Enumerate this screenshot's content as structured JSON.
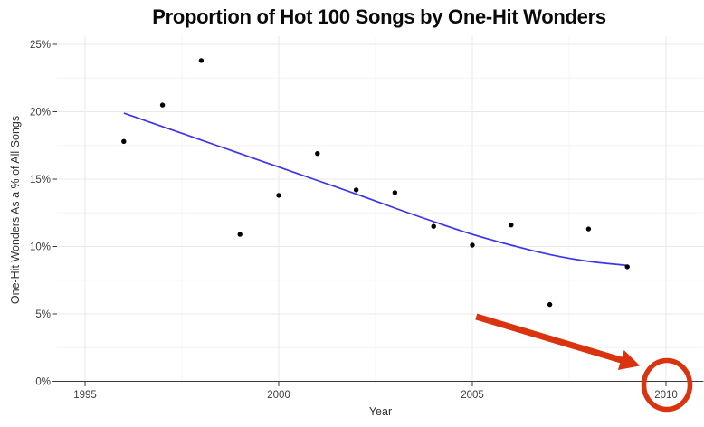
{
  "chart_data": {
    "type": "scatter",
    "title": "Proportion of Hot 100 Songs by One-Hit Wonders",
    "xlabel": "Year",
    "ylabel": "One-Hit Wonders As a % of All Songs",
    "xlim": [
      1994.3,
      2011.0
    ],
    "ylim": [
      0,
      25.6
    ],
    "grid": {
      "major_on": true,
      "minor_x": [
        1997.5,
        2002.5,
        2007.5
      ],
      "minor_y": [
        2.5,
        7.5,
        12.5,
        17.5,
        22.5
      ]
    },
    "x_ticks": [
      {
        "value": 1995,
        "label": "1995"
      },
      {
        "value": 2000,
        "label": "2000"
      },
      {
        "value": 2005,
        "label": "2005"
      },
      {
        "value": 2010,
        "label": "2010"
      }
    ],
    "y_ticks": [
      {
        "value": 0,
        "label": "0%"
      },
      {
        "value": 5,
        "label": "5%"
      },
      {
        "value": 10,
        "label": "10%"
      },
      {
        "value": 15,
        "label": "15%"
      },
      {
        "value": 20,
        "label": "20%"
      },
      {
        "value": 25,
        "label": "25%"
      }
    ],
    "series": [
      {
        "name": "one-hit-wonder-percentage",
        "type": "scatter",
        "points": [
          [
            1996,
            17.8
          ],
          [
            1997,
            20.5
          ],
          [
            1998,
            23.8
          ],
          [
            1999,
            10.9
          ],
          [
            2000,
            13.8
          ],
          [
            2001,
            16.9
          ],
          [
            2002,
            14.2
          ],
          [
            2003,
            14.0
          ],
          [
            2004,
            11.5
          ],
          [
            2005,
            10.1
          ],
          [
            2006,
            11.6
          ],
          [
            2007,
            5.7
          ],
          [
            2008,
            11.3
          ],
          [
            2009,
            8.5
          ]
        ]
      },
      {
        "name": "smoothed-trend",
        "type": "smooth-line",
        "points": [
          [
            1996,
            19.9
          ],
          [
            1997,
            18.9
          ],
          [
            1998,
            17.9
          ],
          [
            1999,
            16.9
          ],
          [
            2000,
            15.9
          ],
          [
            2001,
            14.9
          ],
          [
            2002,
            13.9
          ],
          [
            2003,
            12.85
          ],
          [
            2004,
            11.85
          ],
          [
            2005,
            10.9
          ],
          [
            2006,
            10.1
          ],
          [
            2007,
            9.4
          ],
          [
            2008,
            8.9
          ],
          [
            2009,
            8.6
          ]
        ]
      }
    ],
    "annotations": {
      "arrow": {
        "from": [
          2005.1,
          4.8
        ],
        "to": [
          2009.33,
          1.15
        ]
      },
      "circled_tick_label": "2010"
    },
    "legend": null,
    "colors": {
      "point": "#000000",
      "trend_line": "#3d35e8",
      "annotation_red": "#d9330f",
      "grid_major": "#e9e9e9",
      "grid_minor": "#f4f4f4",
      "axis_line": "#3a3a3a",
      "tick_text": "#3d3d3d",
      "title_text": "#0a0a0a",
      "background": "#ffffff"
    }
  }
}
